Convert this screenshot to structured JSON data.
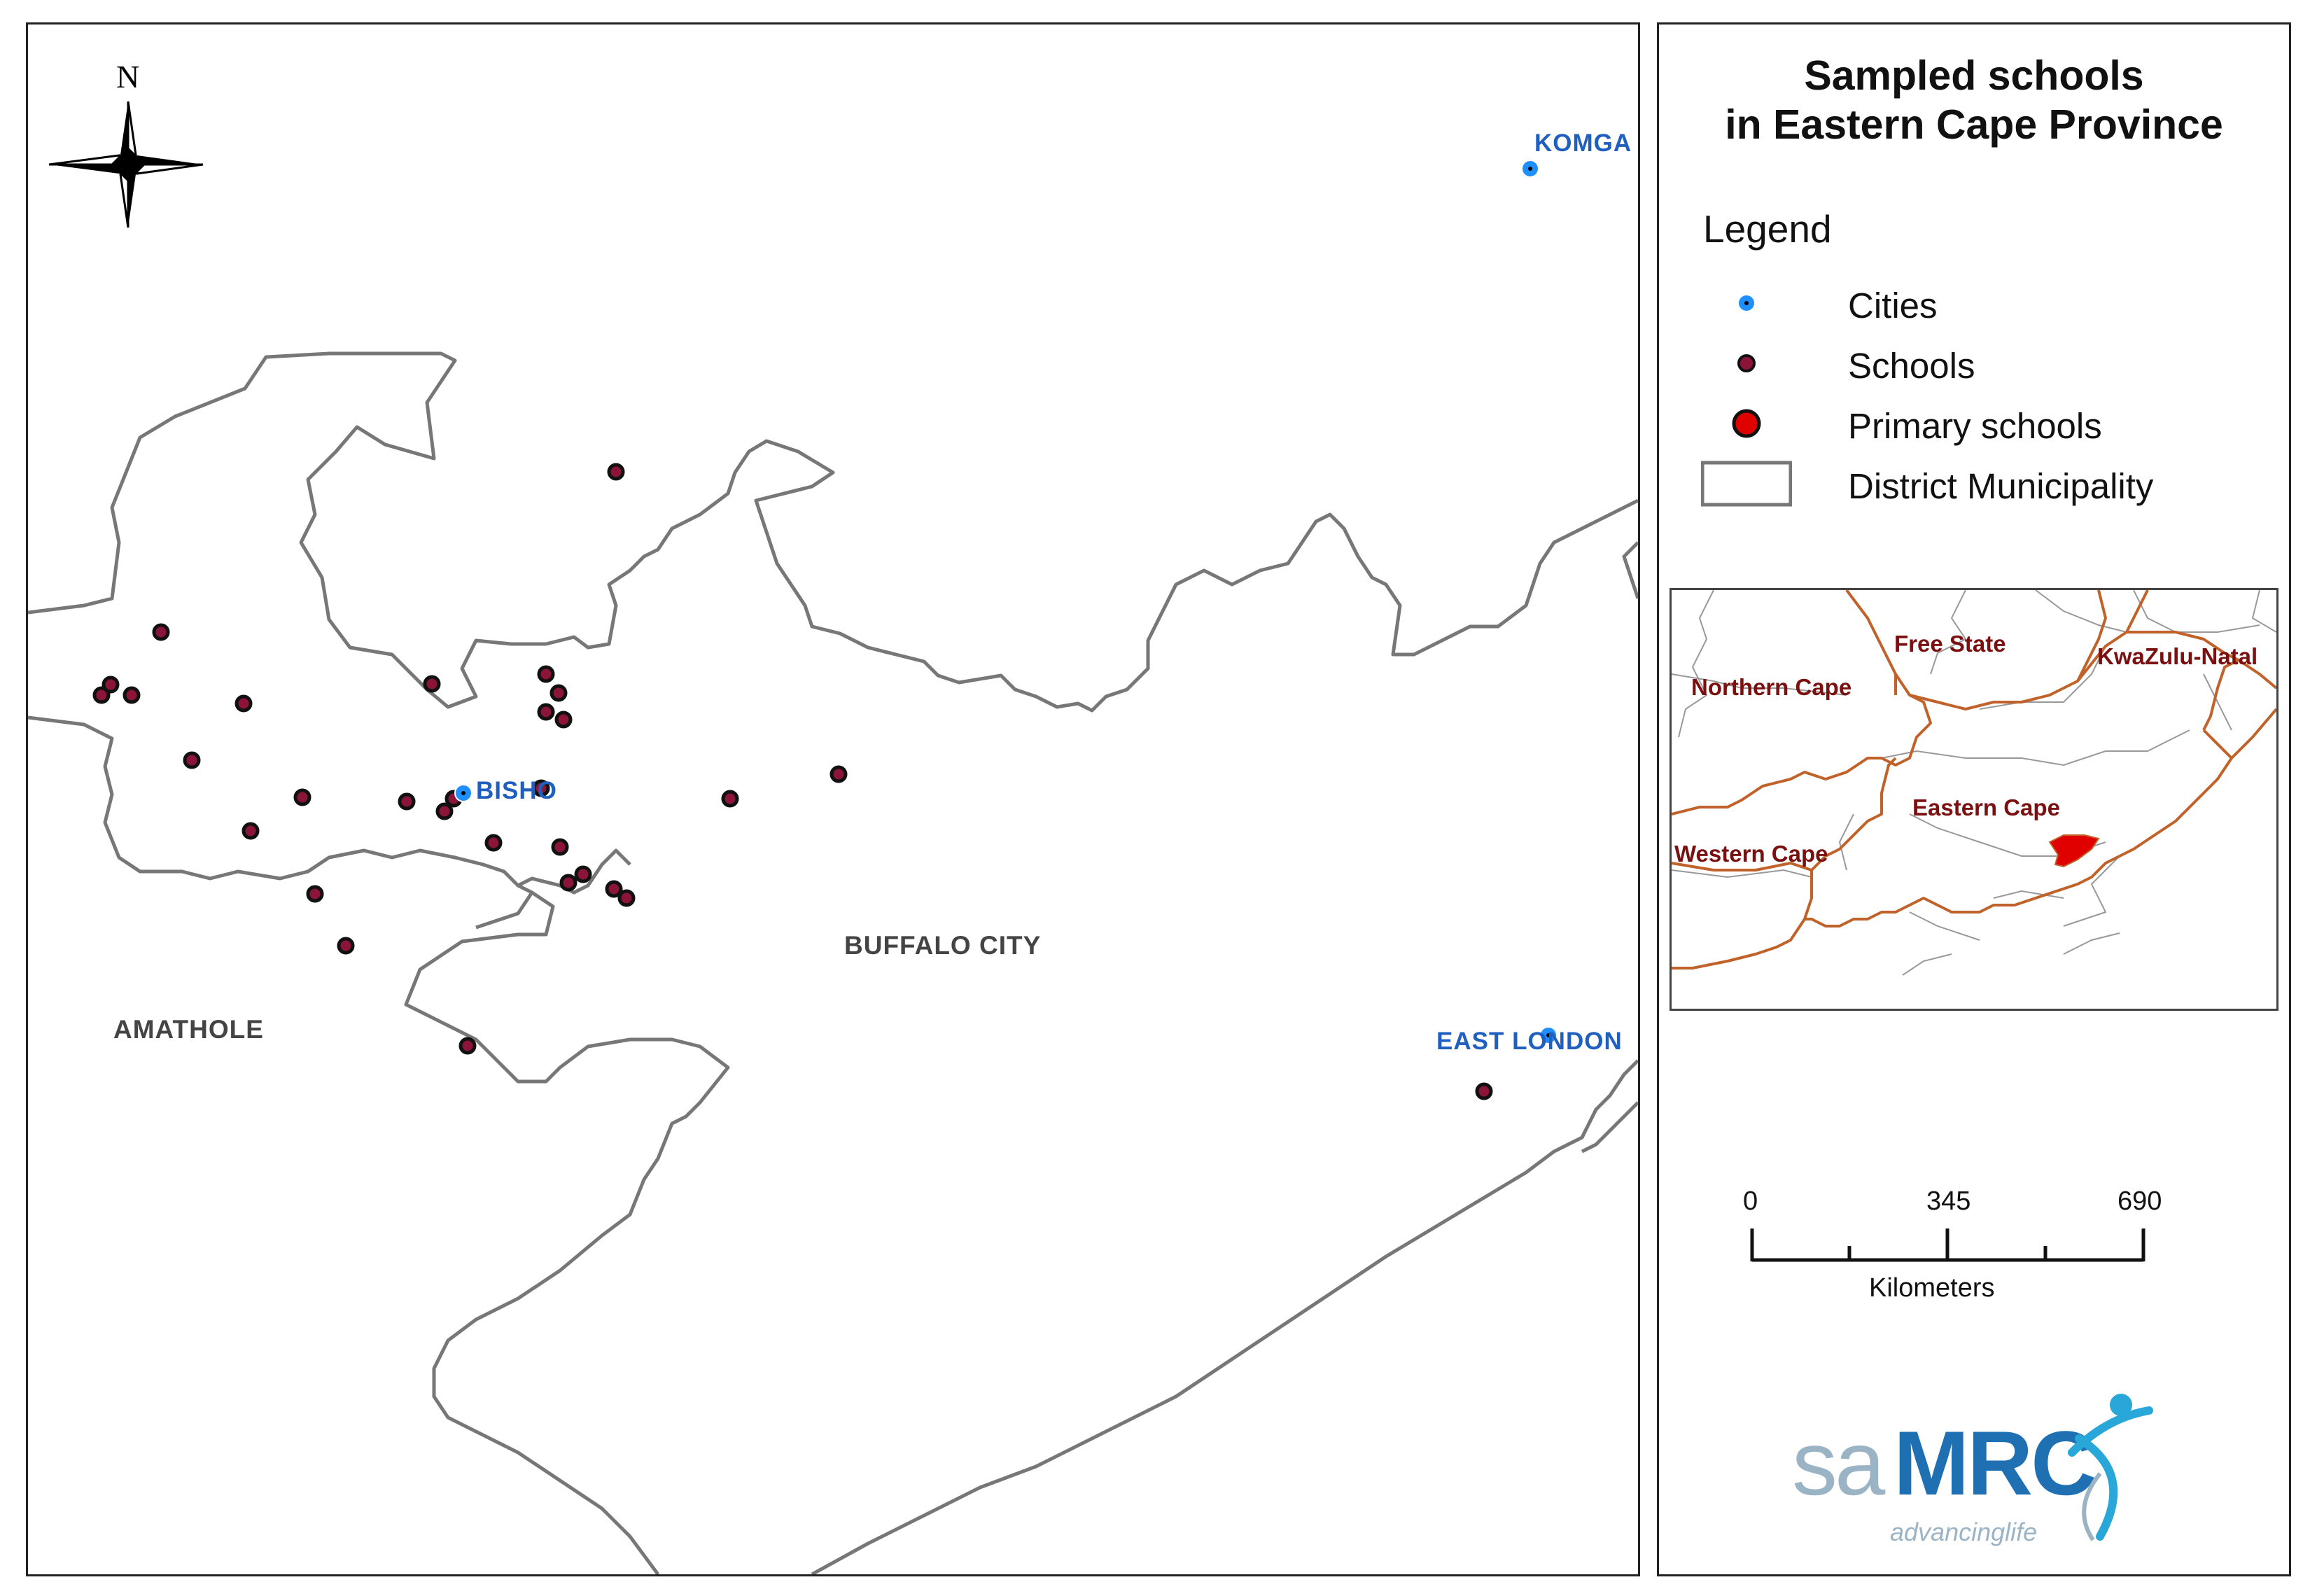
{
  "map": {
    "north_label": "N",
    "cities": [
      {
        "name": "KOMGA"
      },
      {
        "name": "BISHO"
      },
      {
        "name": "EAST LONDON"
      }
    ],
    "districts": [
      {
        "name": "AMATHOLE"
      },
      {
        "name": "BUFFALO CITY"
      }
    ],
    "school_count": 34,
    "colors": {
      "city": "#1e8fff",
      "school": "#8b1538",
      "boundary": "#777777"
    }
  },
  "side": {
    "title_line1": "Sampled schools",
    "title_line2": "in Eastern Cape Province",
    "legend": {
      "title": "Legend",
      "items": [
        {
          "label": "Cities",
          "symbol": "city-dot-icon"
        },
        {
          "label": "Schools",
          "symbol": "school-dot-icon"
        },
        {
          "label": "Primary schools",
          "symbol": "primary-school-dot-icon"
        },
        {
          "label": "District Municipality",
          "symbol": "district-box-icon"
        }
      ]
    },
    "inset": {
      "provinces": [
        {
          "name": "Free State"
        },
        {
          "name": "KwaZulu-Natal"
        },
        {
          "name": "Northern Cape"
        },
        {
          "name": "Eastern Cape"
        },
        {
          "name": "Western Cape"
        }
      ],
      "colors": {
        "boundary": "#c0622a",
        "highlight": "#e00000"
      }
    },
    "scale": {
      "ticks": [
        "0",
        "345",
        "690"
      ],
      "unit": "Kilometers"
    },
    "logo": {
      "sa": "sa",
      "mrc": "MRC",
      "tagline": "advancinglife"
    }
  }
}
